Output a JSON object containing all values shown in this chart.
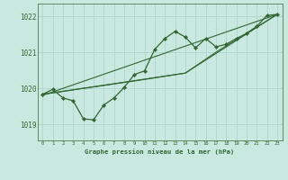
{
  "title": "Graphe pression niveau de la mer (hPa)",
  "bg_color": "#c8e8e0",
  "grid_color": "#b0d8d0",
  "line_color": "#336633",
  "text_color": "#336633",
  "xlim": [
    -0.5,
    23.5
  ],
  "ylim": [
    1018.55,
    1022.35
  ],
  "yticks": [
    1019,
    1020,
    1021,
    1022
  ],
  "xticks": [
    0,
    1,
    2,
    3,
    4,
    5,
    6,
    7,
    8,
    9,
    10,
    11,
    12,
    13,
    14,
    15,
    16,
    17,
    18,
    19,
    20,
    21,
    22,
    23
  ],
  "series_jagged": {
    "x": [
      0,
      1,
      2,
      3,
      4,
      5,
      6,
      7,
      8,
      9,
      10,
      11,
      12,
      13,
      14,
      15,
      16,
      17,
      18,
      19,
      20,
      21,
      22,
      23
    ],
    "y": [
      1019.83,
      1019.97,
      1019.73,
      1019.65,
      1019.15,
      1019.12,
      1019.53,
      1019.73,
      1020.02,
      1020.38,
      1020.48,
      1021.08,
      1021.38,
      1021.58,
      1021.42,
      1021.12,
      1021.38,
      1021.15,
      1021.22,
      1021.38,
      1021.52,
      1021.72,
      1022.02,
      1022.05
    ]
  },
  "series_smooth": {
    "x": [
      0,
      1,
      2,
      3,
      4,
      5,
      6,
      7,
      8,
      9,
      10,
      11,
      12,
      13,
      14,
      15,
      16,
      17,
      18,
      19,
      20,
      21,
      22,
      23
    ],
    "y": [
      1019.83,
      1019.97,
      1019.73,
      1019.65,
      1019.15,
      1019.12,
      1019.53,
      1019.73,
      1020.02,
      1020.38,
      1020.48,
      1021.08,
      1021.38,
      1021.58,
      1021.42,
      1021.12,
      1021.38,
      1021.15,
      1021.22,
      1021.38,
      1021.52,
      1021.72,
      1022.02,
      1022.05
    ]
  },
  "trend_x": [
    0,
    23
  ],
  "trend_y": [
    1019.8,
    1022.05
  ],
  "trend2_x": [
    0,
    14,
    17,
    23
  ],
  "trend2_y": [
    1019.83,
    1020.42,
    1021.0,
    1022.05
  ],
  "trend3_x": [
    0,
    9,
    14,
    23
  ],
  "trend3_y": [
    1019.83,
    1020.2,
    1020.42,
    1022.05
  ]
}
